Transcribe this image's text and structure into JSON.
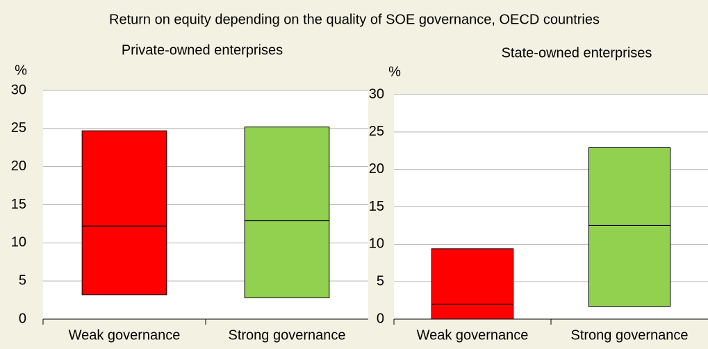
{
  "title": "Return on equity depending on the quality of SOE governance, OECD countries",
  "chart_data": [
    {
      "type": "floating_bar",
      "title": "Private-owned enterprises",
      "ylabel": "%",
      "categories": [
        "Weak governance",
        "Strong governance"
      ],
      "low": [
        3.2,
        2.8
      ],
      "median": [
        12.2,
        12.9
      ],
      "high": [
        24.7,
        25.2
      ],
      "colors": [
        "#ff0000",
        "#92d050"
      ],
      "ylim": [
        0,
        30
      ],
      "yticks": [
        0,
        5,
        10,
        15,
        20,
        25,
        30
      ],
      "grid": true
    },
    {
      "type": "floating_bar",
      "title": "State-owned enterprises",
      "ylabel": "%",
      "categories": [
        "Weak governance",
        "Strong governance"
      ],
      "low": [
        0,
        1.7
      ],
      "median": [
        2.0,
        12.5
      ],
      "high": [
        9.4,
        22.9
      ],
      "colors": [
        "#ff0000",
        "#92d050"
      ],
      "ylim": [
        0,
        30
      ],
      "yticks": [
        0,
        5,
        10,
        15,
        20,
        25,
        30
      ],
      "grid": true
    }
  ]
}
